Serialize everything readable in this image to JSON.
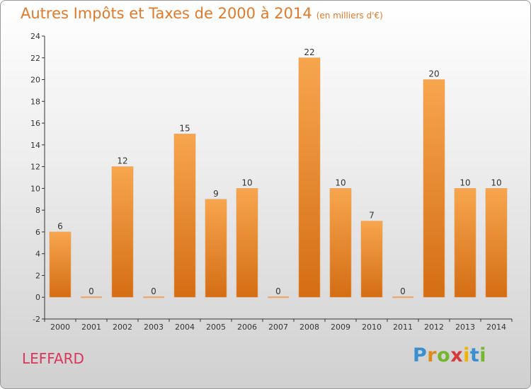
{
  "header": {
    "title": "Autres Impôts et Taxes de 2000 à 2014",
    "subtitle": "(en milliers d'€)"
  },
  "footer": {
    "commune": "LEFFARD",
    "logo_letters": [
      "P",
      "r",
      "o",
      "x",
      "i",
      "t",
      "i"
    ],
    "logo_colors": [
      "#3a8fd1",
      "#e08a1a",
      "#74b72e",
      "#d73a3a",
      "#f0b400",
      "#3a8fd1",
      "#74b72e"
    ]
  },
  "colors": {
    "bar_top": "#f7a64e",
    "bar_bottom": "#d46d14",
    "title": "#e07a2a",
    "commune": "#d9365a"
  },
  "chart_data": {
    "type": "bar",
    "categories": [
      "2000",
      "2001",
      "2002",
      "2003",
      "2004",
      "2005",
      "2006",
      "2007",
      "2008",
      "2009",
      "2010",
      "2011",
      "2012",
      "2013",
      "2014"
    ],
    "values": [
      6,
      0,
      12,
      0,
      15,
      9,
      10,
      0,
      22,
      10,
      7,
      0,
      20,
      10,
      10
    ],
    "data_labels": [
      "6",
      "0",
      "12",
      "0",
      "15",
      "9",
      "10",
      "0",
      "22",
      "10",
      "7",
      "0",
      "20",
      "10",
      "10"
    ],
    "yticks": [
      -2,
      0,
      2,
      4,
      6,
      8,
      10,
      12,
      14,
      16,
      18,
      20,
      22,
      24
    ],
    "ylim": [
      -2,
      24
    ],
    "grid": false,
    "legend": "none"
  }
}
